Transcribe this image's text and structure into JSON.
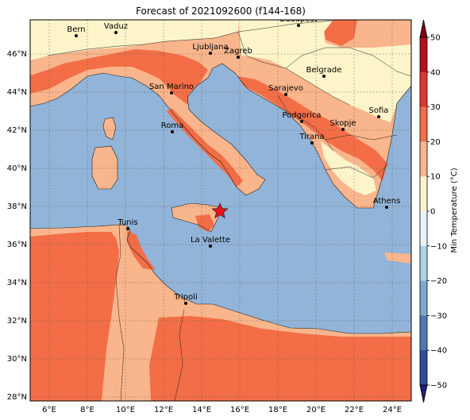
{
  "title": "Forecast of 2021092600 (f144-168)",
  "map": {
    "lon_range": [
      5,
      25
    ],
    "lat_range": [
      27.8,
      47.8
    ],
    "lon_ticks": [
      "6°E",
      "8°E",
      "10°E",
      "12°E",
      "14°E",
      "16°E",
      "18°E",
      "20°E",
      "22°E",
      "24°E"
    ],
    "lat_ticks": [
      "28°N",
      "30°N",
      "32°N",
      "34°N",
      "36°N",
      "38°N",
      "40°N",
      "42°N",
      "44°N",
      "46°N"
    ],
    "grid": true,
    "colors": {
      "sea": "#92b4d8",
      "band_10_20": "#f9b58b",
      "band_20_30": "#f36e47",
      "band_0_10": "#fdf4c9",
      "band_30_40": "#d93a2c"
    }
  },
  "cities": [
    {
      "name": "Bern"
    },
    {
      "name": "Vaduz"
    },
    {
      "name": "Budapest"
    },
    {
      "name": "Ljubljana"
    },
    {
      "name": "Zagreb"
    },
    {
      "name": "Belgrade"
    },
    {
      "name": "San Marino"
    },
    {
      "name": "Sarajevo"
    },
    {
      "name": "Sofia"
    },
    {
      "name": "Podgorica"
    },
    {
      "name": "Skopje"
    },
    {
      "name": "Roma"
    },
    {
      "name": "Tirana"
    },
    {
      "name": "Athens"
    },
    {
      "name": "Tunis"
    },
    {
      "name": "La Valette"
    },
    {
      "name": "Tripoli"
    }
  ],
  "marker": {
    "icon": "red-star-icon",
    "color": "#e8141e"
  },
  "colorbar": {
    "label": "Min Temperature (°C)",
    "ticks": [
      "50",
      "40",
      "30",
      "20",
      "10",
      "0",
      "−10",
      "−20",
      "−30",
      "−40",
      "−50"
    ],
    "colors": [
      "#7a0416",
      "#b51021",
      "#d93a2c",
      "#f36e47",
      "#f9b58b",
      "#fdf4c9",
      "#e6f4f8",
      "#aed3e6",
      "#7aaad0",
      "#4f78b5",
      "#2e4a9b",
      "#1d1f7a"
    ]
  }
}
